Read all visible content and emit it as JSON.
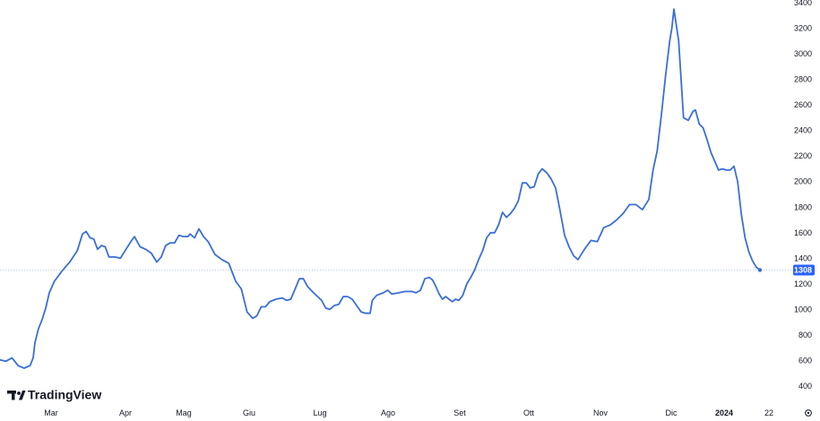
{
  "brand": {
    "name": "TradingView"
  },
  "chart_data": {
    "type": "line",
    "x_axis_labels": [
      "Mar",
      "Apr",
      "Mag",
      "Giu",
      "Lug",
      "Ago",
      "Set",
      "Ott",
      "Nov",
      "Dic",
      "2024",
      "22"
    ],
    "y_axis_labels": [
      "3400",
      "3200",
      "3000",
      "2800",
      "2600",
      "2400",
      "2200",
      "2000",
      "1800",
      "1600",
      "1400",
      "1200",
      "1000",
      "800",
      "600",
      "400"
    ],
    "ylim": [
      400,
      3400
    ],
    "grid": false,
    "last_value": {
      "label": "1308",
      "value": 1308
    },
    "colors": {
      "line": "#3a6fd8",
      "badge": "#2962ff",
      "price_line": "#b8c8f0"
    },
    "series": [
      {
        "points": [
          [
            0,
            605
          ],
          [
            0.1,
            595
          ],
          [
            0.2,
            620
          ],
          [
            0.3,
            560
          ],
          [
            0.4,
            540
          ],
          [
            0.5,
            560
          ],
          [
            0.55,
            620
          ],
          [
            0.6,
            740
          ],
          [
            0.7,
            850
          ],
          [
            0.8,
            920
          ],
          [
            0.9,
            1010
          ],
          [
            1.0,
            1130
          ],
          [
            1.1,
            1220
          ],
          [
            1.25,
            1300
          ],
          [
            1.4,
            1370
          ],
          [
            1.55,
            1460
          ],
          [
            1.65,
            1590
          ],
          [
            1.75,
            1610
          ],
          [
            1.85,
            1560
          ],
          [
            1.95,
            1550
          ],
          [
            2.05,
            1470
          ],
          [
            2.15,
            1500
          ],
          [
            2.25,
            1490
          ],
          [
            2.35,
            1410
          ],
          [
            2.5,
            1410
          ],
          [
            2.6,
            1400
          ],
          [
            2.7,
            1470
          ],
          [
            2.8,
            1540
          ],
          [
            2.85,
            1570
          ],
          [
            2.95,
            1490
          ],
          [
            3.05,
            1470
          ],
          [
            3.15,
            1440
          ],
          [
            3.25,
            1370
          ],
          [
            3.35,
            1410
          ],
          [
            3.45,
            1500
          ],
          [
            3.55,
            1520
          ],
          [
            3.65,
            1520
          ],
          [
            3.75,
            1580
          ],
          [
            3.85,
            1570
          ],
          [
            3.95,
            1570
          ],
          [
            4.0,
            1590
          ],
          [
            4.1,
            1560
          ],
          [
            4.2,
            1630
          ],
          [
            4.3,
            1570
          ],
          [
            4.4,
            1530
          ],
          [
            4.55,
            1430
          ],
          [
            4.7,
            1390
          ],
          [
            4.85,
            1360
          ],
          [
            5.0,
            1220
          ],
          [
            5.1,
            1160
          ],
          [
            5.2,
            980
          ],
          [
            5.3,
            930
          ],
          [
            5.4,
            950
          ],
          [
            5.5,
            1020
          ],
          [
            5.6,
            1020
          ],
          [
            5.7,
            1060
          ],
          [
            5.85,
            1080
          ],
          [
            6.0,
            1090
          ],
          [
            6.1,
            1070
          ],
          [
            6.2,
            1080
          ],
          [
            6.3,
            1160
          ],
          [
            6.4,
            1240
          ],
          [
            6.5,
            1240
          ],
          [
            6.6,
            1180
          ],
          [
            6.75,
            1130
          ],
          [
            6.85,
            1100
          ],
          [
            6.95,
            1070
          ],
          [
            7.05,
            1010
          ],
          [
            7.15,
            1000
          ],
          [
            7.25,
            1030
          ],
          [
            7.35,
            1040
          ],
          [
            7.45,
            1100
          ],
          [
            7.55,
            1100
          ],
          [
            7.65,
            1080
          ],
          [
            7.75,
            1030
          ],
          [
            7.85,
            980
          ],
          [
            7.95,
            970
          ],
          [
            8.05,
            970
          ],
          [
            8.1,
            1070
          ],
          [
            8.2,
            1110
          ],
          [
            8.35,
            1130
          ],
          [
            8.45,
            1150
          ],
          [
            8.55,
            1120
          ],
          [
            8.7,
            1130
          ],
          [
            8.85,
            1140
          ],
          [
            9.0,
            1140
          ],
          [
            9.1,
            1130
          ],
          [
            9.2,
            1150
          ],
          [
            9.3,
            1240
          ],
          [
            9.4,
            1250
          ],
          [
            9.5,
            1230
          ],
          [
            9.6,
            1180
          ],
          [
            9.7,
            1120
          ],
          [
            9.8,
            1080
          ],
          [
            9.9,
            1100
          ],
          [
            10.0,
            1080
          ],
          [
            10.1,
            1060
          ],
          [
            10.2,
            1080
          ],
          [
            10.3,
            1070
          ],
          [
            10.4,
            1110
          ],
          [
            10.5,
            1200
          ],
          [
            10.6,
            1250
          ],
          [
            10.7,
            1310
          ],
          [
            10.8,
            1390
          ],
          [
            10.9,
            1460
          ],
          [
            11.0,
            1560
          ],
          [
            11.1,
            1600
          ],
          [
            11.2,
            1600
          ],
          [
            11.3,
            1660
          ],
          [
            11.4,
            1760
          ],
          [
            11.5,
            1720
          ],
          [
            11.6,
            1750
          ],
          [
            11.7,
            1790
          ],
          [
            11.8,
            1850
          ],
          [
            11.9,
            1990
          ],
          [
            12.0,
            1990
          ],
          [
            12.1,
            1950
          ],
          [
            12.2,
            1960
          ],
          [
            12.3,
            2060
          ],
          [
            12.4,
            2100
          ],
          [
            12.5,
            2070
          ],
          [
            12.6,
            2020
          ],
          [
            12.7,
            1950
          ],
          [
            12.8,
            1770
          ],
          [
            12.9,
            1580
          ],
          [
            13.0,
            1490
          ],
          [
            13.1,
            1420
          ],
          [
            13.2,
            1390
          ],
          [
            13.3,
            1470
          ],
          [
            13.4,
            1540
          ],
          [
            13.5,
            1530
          ],
          [
            13.6,
            1640
          ],
          [
            13.7,
            1660
          ],
          [
            13.8,
            1700
          ],
          [
            13.9,
            1750
          ],
          [
            14.0,
            1820
          ],
          [
            14.1,
            1820
          ],
          [
            14.2,
            1780
          ],
          [
            14.3,
            1860
          ],
          [
            14.4,
            2090
          ],
          [
            14.5,
            2240
          ],
          [
            14.6,
            2520
          ],
          [
            14.7,
            2830
          ],
          [
            14.8,
            3100
          ],
          [
            14.85,
            3200
          ],
          [
            14.9,
            3350
          ],
          [
            15.0,
            3100
          ],
          [
            15.1,
            2500
          ],
          [
            15.2,
            2480
          ],
          [
            15.3,
            2550
          ],
          [
            15.35,
            2560
          ],
          [
            15.45,
            2450
          ],
          [
            15.55,
            2420
          ],
          [
            15.65,
            2330
          ],
          [
            15.75,
            2230
          ],
          [
            15.85,
            2160
          ],
          [
            15.95,
            2090
          ],
          [
            16.05,
            2100
          ],
          [
            16.15,
            2090
          ],
          [
            16.25,
            2090
          ],
          [
            16.35,
            2120
          ],
          [
            16.45,
            2000
          ],
          [
            16.55,
            1740
          ],
          [
            16.65,
            1560
          ],
          [
            16.75,
            1450
          ],
          [
            16.85,
            1380
          ],
          [
            16.95,
            1330
          ],
          [
            17.05,
            1308
          ]
        ]
      }
    ]
  }
}
